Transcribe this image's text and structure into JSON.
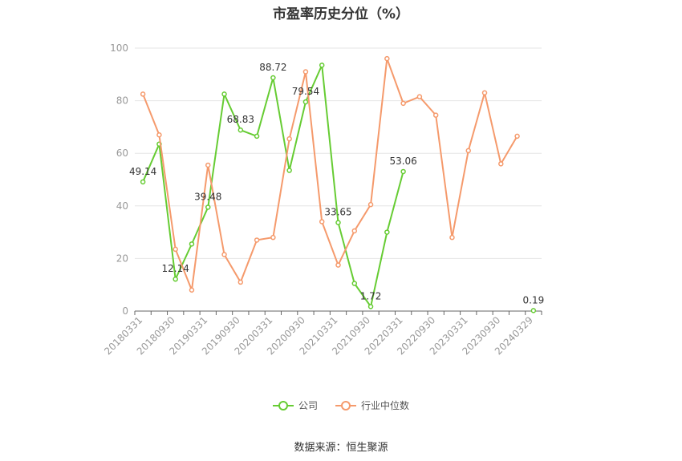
{
  "title": "市盈率历史分位（%）",
  "source": "数据来源：恒生聚源",
  "colors": {
    "company": "#66cc33",
    "industry": "#f59a6c",
    "grid": "#e6e6e6",
    "axis": "#666666"
  },
  "chart_data": {
    "type": "line",
    "title": "市盈率历史分位（%）",
    "xlabel": "",
    "ylabel": "",
    "ylim": [
      0,
      100
    ],
    "yticks": [
      0,
      20,
      40,
      60,
      80,
      100
    ],
    "grid": true,
    "legend_position": "bottom",
    "x": [
      "20180331",
      "20180630",
      "20180930",
      "20181231",
      "20190331",
      "20190630",
      "20190930",
      "20191231",
      "20200331",
      "20200630",
      "20200930",
      "20201231",
      "20210331",
      "20210630",
      "20210930",
      "20211231",
      "20220331",
      "20220630",
      "20220930",
      "20221231",
      "20230331",
      "20230630",
      "20230930",
      "20231231",
      "20240329"
    ],
    "x_tick_labels": [
      "20180331",
      "20180930",
      "20190331",
      "20190930",
      "20200331",
      "20200930",
      "20210331",
      "20210930",
      "20220331",
      "20220930",
      "20230331",
      "20230930",
      "20240329"
    ],
    "series": [
      {
        "name": "公司",
        "color": "#66cc33",
        "values": [
          49.14,
          63.5,
          12.14,
          25.5,
          39.48,
          82.5,
          68.83,
          66.5,
          88.72,
          53.5,
          79.54,
          93.5,
          33.65,
          10.5,
          1.72,
          30.0,
          53.06,
          null,
          null,
          null,
          null,
          null,
          null,
          null,
          0.19
        ],
        "labels": {
          "0": "49.14",
          "2": "12.14",
          "4": "39.48",
          "6": "68.83",
          "8": "88.72",
          "10": "79.54",
          "12": "33.65",
          "14": "1.72",
          "16": "53.06",
          "24": "0.19"
        }
      },
      {
        "name": "行业中位数",
        "color": "#f59a6c",
        "values": [
          82.5,
          67.0,
          23.5,
          8.0,
          55.5,
          21.5,
          11.0,
          27.0,
          28.0,
          65.5,
          91.0,
          34.0,
          17.5,
          30.5,
          40.5,
          96.0,
          79.0,
          81.5,
          74.5,
          28.0,
          61.0,
          83.0,
          56.0,
          66.5,
          null
        ]
      }
    ]
  },
  "legend": [
    {
      "label": "公司",
      "color": "#66cc33"
    },
    {
      "label": "行业中位数",
      "color": "#f59a6c"
    }
  ]
}
